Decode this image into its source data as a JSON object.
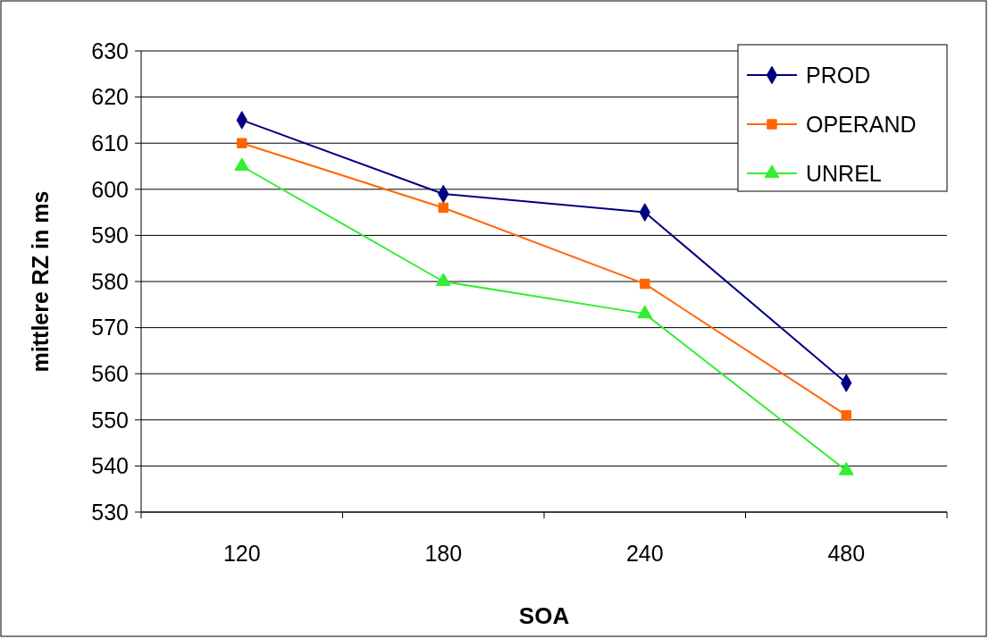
{
  "chart_data": {
    "type": "line",
    "xlabel": "SOA",
    "ylabel": "mittlere RZ in ms",
    "categories": [
      "120",
      "180",
      "240",
      "480"
    ],
    "ylim": [
      530,
      630
    ],
    "yticks": [
      530,
      540,
      550,
      560,
      570,
      580,
      590,
      600,
      610,
      620,
      630
    ],
    "grid": "y",
    "legend": "top right",
    "series": [
      {
        "name": "PROD",
        "color": "#000080",
        "marker": "diamond",
        "values": [
          615,
          599,
          595,
          558
        ]
      },
      {
        "name": "OPERAND",
        "color": "#ff6600",
        "marker": "square",
        "values": [
          610,
          596,
          579.5,
          551
        ]
      },
      {
        "name": "UNREL",
        "color": "#33ee33",
        "marker": "triangle",
        "values": [
          605,
          580,
          573,
          539
        ]
      }
    ]
  }
}
